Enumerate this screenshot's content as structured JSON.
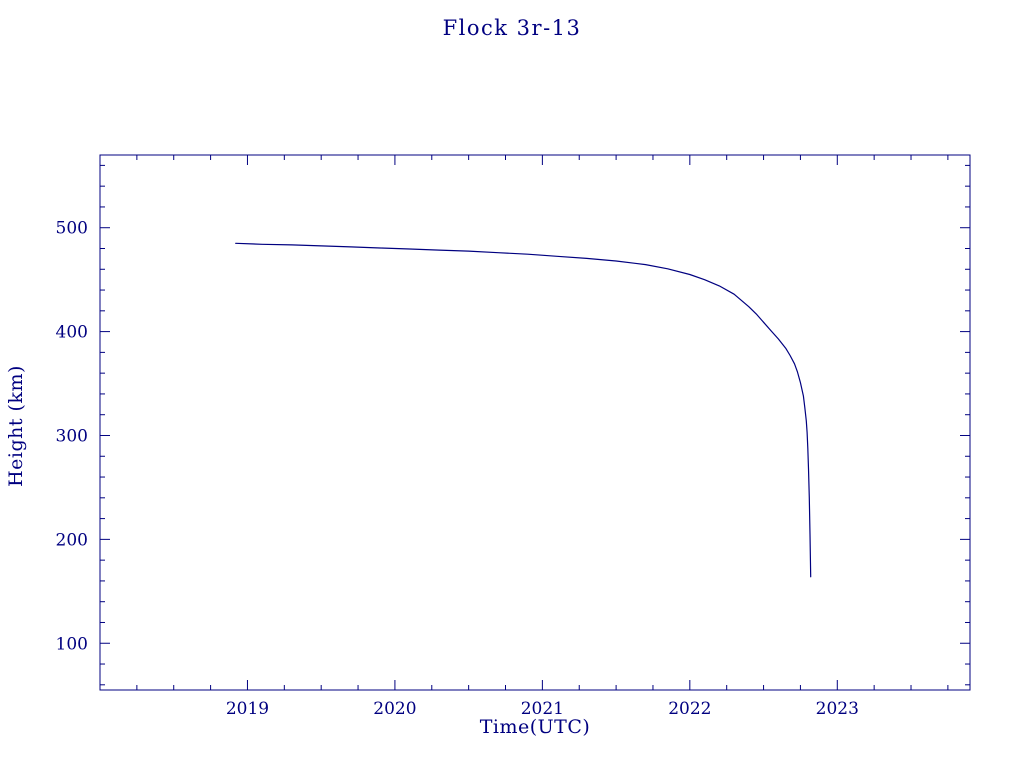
{
  "chart_data": {
    "type": "line",
    "title": "Flock 3r-13",
    "xlabel": "Time(UTC)",
    "ylabel": "Height (km)",
    "xlim": [
      2018.0,
      2023.9
    ],
    "ylim": [
      55,
      570
    ],
    "x_ticks": [
      2019,
      2020,
      2021,
      2022,
      2023
    ],
    "y_ticks": [
      100,
      200,
      300,
      400,
      500
    ],
    "x_minor_step": 0.25,
    "y_minor_step": 20,
    "grid": false,
    "legend": "none",
    "line_color": "#000080",
    "background": "#ffffff",
    "series": [
      {
        "name": "Flock 3r-13",
        "points": [
          [
            2018.92,
            485
          ],
          [
            2019.1,
            484
          ],
          [
            2019.3,
            483.5
          ],
          [
            2019.5,
            482.5
          ],
          [
            2019.7,
            481.5
          ],
          [
            2019.9,
            480.5
          ],
          [
            2020.1,
            479.5
          ],
          [
            2020.3,
            478.5
          ],
          [
            2020.5,
            477.5
          ],
          [
            2020.7,
            476
          ],
          [
            2020.9,
            474.5
          ],
          [
            2021.1,
            472.5
          ],
          [
            2021.3,
            470.5
          ],
          [
            2021.5,
            468
          ],
          [
            2021.7,
            464.5
          ],
          [
            2021.85,
            460.5
          ],
          [
            2022.0,
            455
          ],
          [
            2022.1,
            450
          ],
          [
            2022.2,
            444
          ],
          [
            2022.3,
            436
          ],
          [
            2022.4,
            424
          ],
          [
            2022.45,
            417
          ],
          [
            2022.5,
            409
          ],
          [
            2022.55,
            401
          ],
          [
            2022.6,
            393
          ],
          [
            2022.65,
            384
          ],
          [
            2022.68,
            377
          ],
          [
            2022.71,
            369
          ],
          [
            2022.73,
            361
          ],
          [
            2022.75,
            351
          ],
          [
            2022.77,
            338
          ],
          [
            2022.78,
            327
          ],
          [
            2022.79,
            314
          ],
          [
            2022.795,
            303
          ],
          [
            2022.8,
            288
          ],
          [
            2022.805,
            268
          ],
          [
            2022.81,
            240
          ],
          [
            2022.815,
            205
          ],
          [
            2022.82,
            164
          ]
        ]
      }
    ]
  }
}
